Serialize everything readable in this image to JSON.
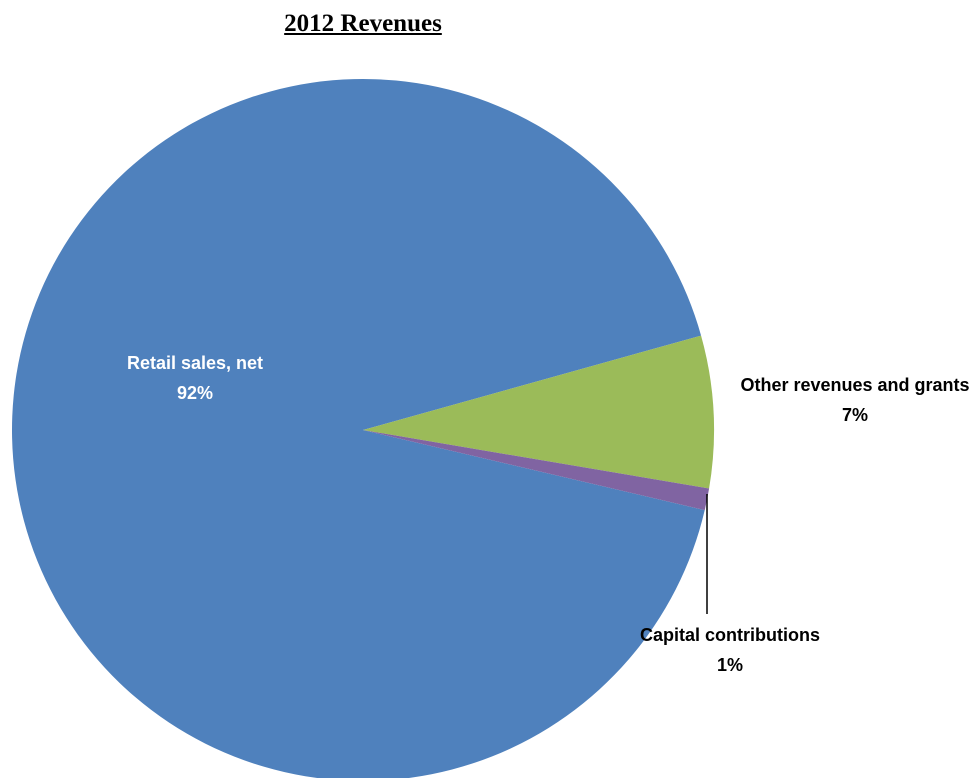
{
  "chart_data": {
    "type": "pie",
    "title": "2012 Revenues",
    "categories": [
      "Retail sales, net",
      "Other revenues and grants",
      "Capital contributions"
    ],
    "values": [
      92,
      7,
      1
    ],
    "value_labels": [
      "92%",
      "7%",
      "1%"
    ],
    "colors": [
      "#4f81bd",
      "#9bbb59",
      "#8064a2"
    ]
  }
}
